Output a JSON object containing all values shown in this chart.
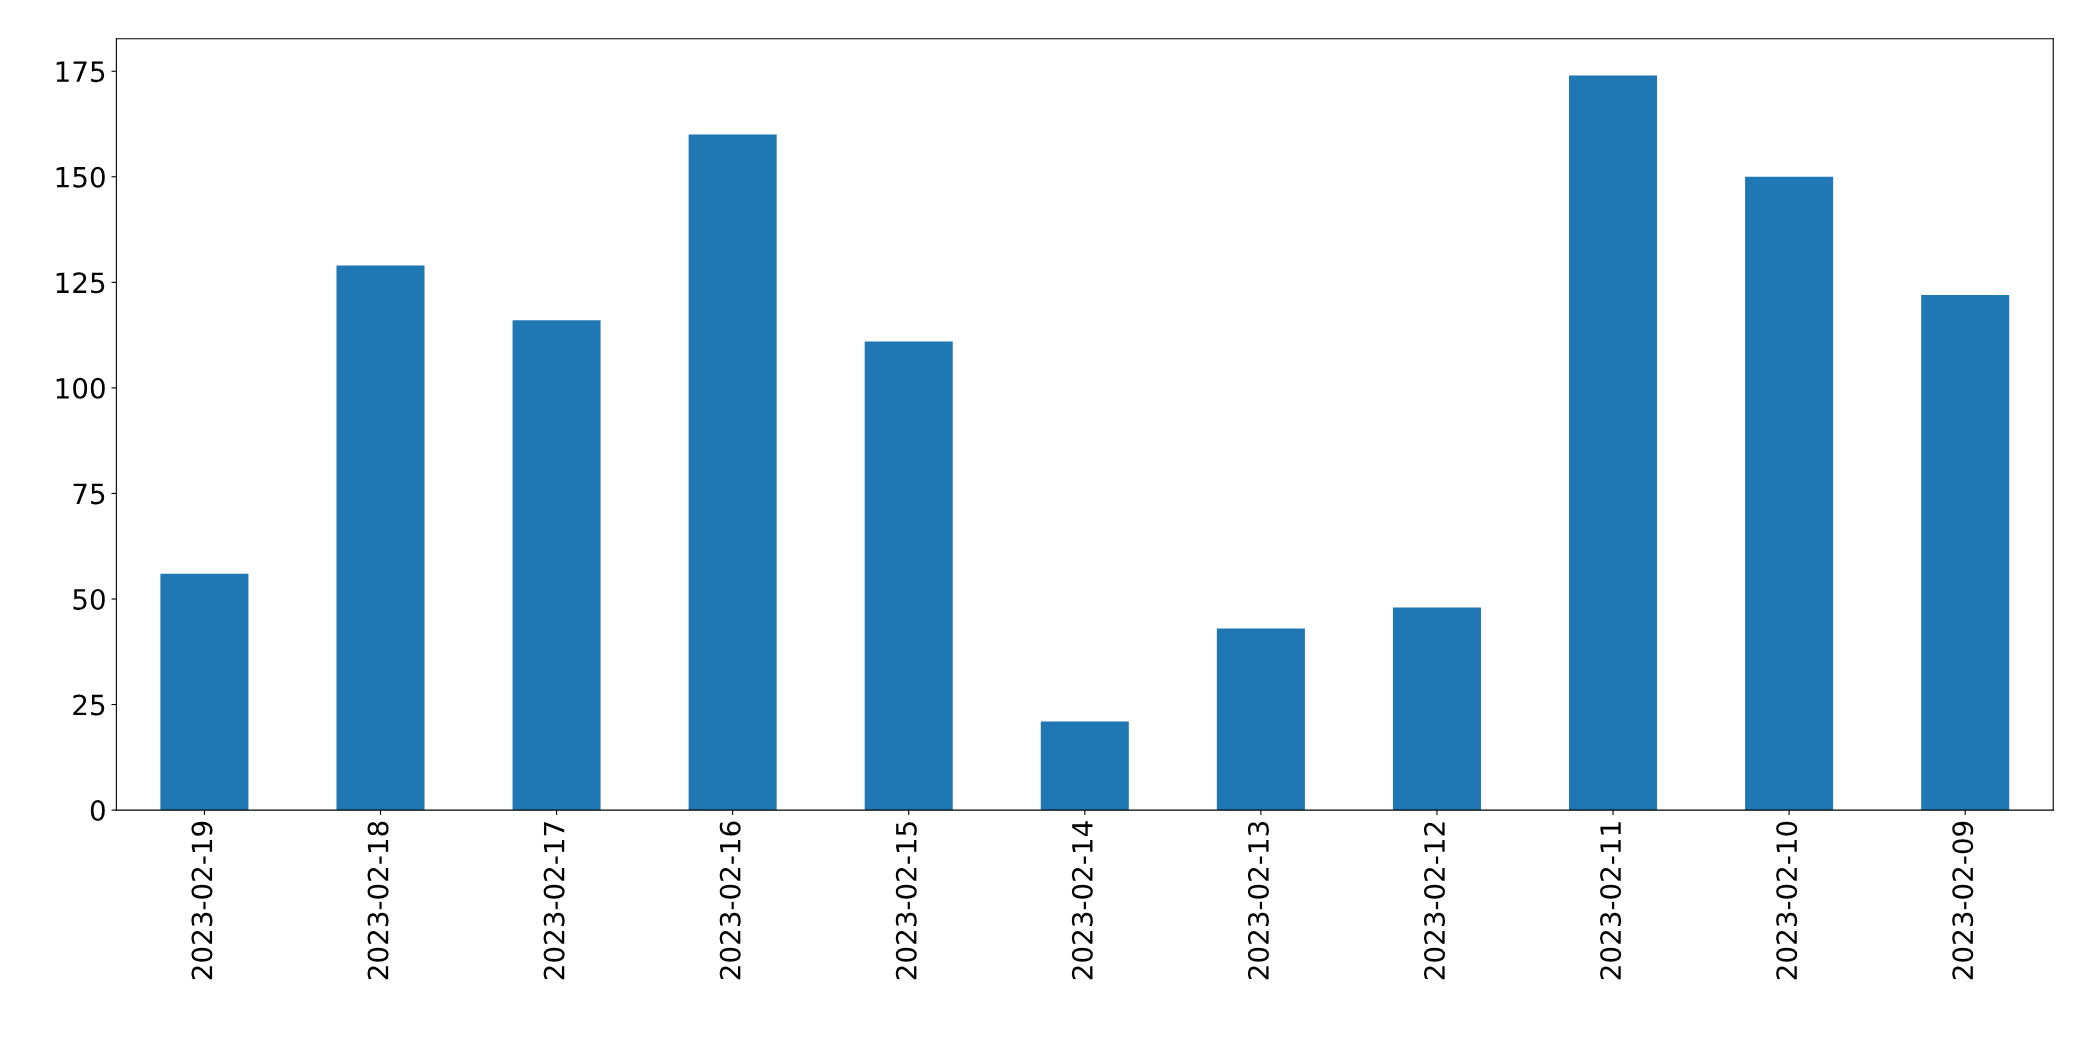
{
  "chart_data": {
    "type": "bar",
    "categories": [
      "2023-02-19",
      "2023-02-18",
      "2023-02-17",
      "2023-02-16",
      "2023-02-15",
      "2023-02-14",
      "2023-02-13",
      "2023-02-12",
      "2023-02-11",
      "2023-02-10",
      "2023-02-09"
    ],
    "values": [
      56,
      129,
      116,
      160,
      111,
      21,
      43,
      48,
      174,
      150,
      122
    ],
    "color": "#1f77b4",
    "ylim": [
      0,
      182.7
    ],
    "yticks": [
      0,
      25,
      50,
      75,
      100,
      125,
      150,
      175
    ],
    "grid": false,
    "legend": false
  }
}
